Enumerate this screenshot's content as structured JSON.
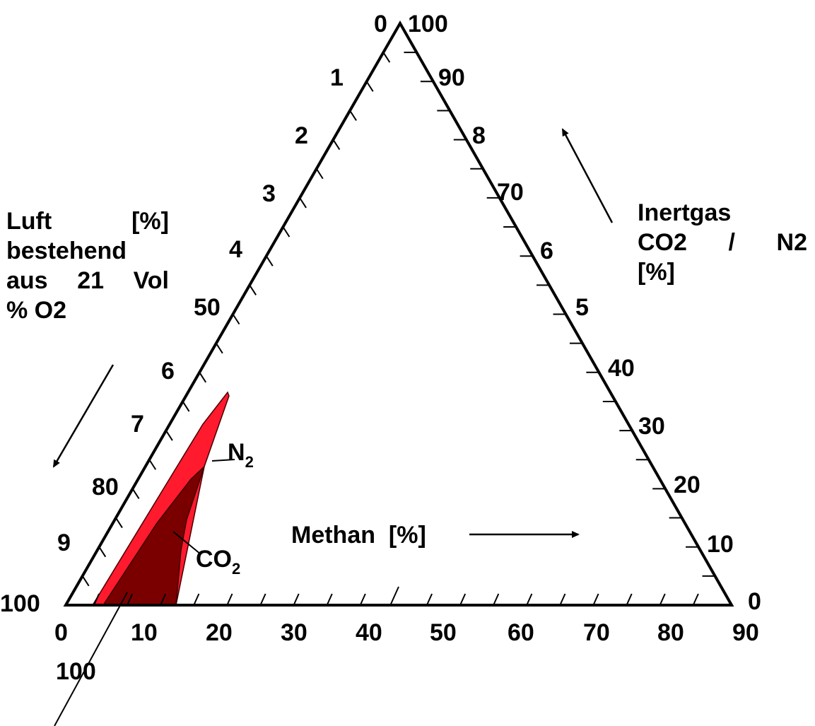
{
  "colors": {
    "n2_region": "#ff1a2e",
    "co2_region": "#7a0000",
    "line": "#000000",
    "background": "#ffffff"
  },
  "left_axis_labels": {
    "top": "0",
    "t1": "1",
    "t2": "2",
    "t3": "3",
    "t4": "4",
    "t5": "50",
    "t6": "6",
    "t7": "7",
    "t8": "80",
    "t9": "9",
    "bottom": "100"
  },
  "right_axis_labels": {
    "top": "100",
    "t9": "90",
    "t8": "8",
    "t7": "70",
    "t6": "6",
    "t5": "5",
    "t4": "40",
    "t3": "30",
    "t2": "20",
    "t1": "10",
    "bottom": "0"
  },
  "bottom_axis_labels": [
    "0",
    "10",
    "20",
    "30",
    "40",
    "50",
    "60",
    "70",
    "80",
    "90"
  ],
  "extra_label_100": "100",
  "axis_titles": {
    "methane": "Methan  [%]",
    "air_line1_a": "Luft",
    "air_line1_b": "[%]",
    "air_line2": "bestehend",
    "air_line3_a": "aus",
    "air_line3_b": "21",
    "air_line3_c": "Vol",
    "air_line4": "% O2",
    "inert_line1": "Inertgas",
    "inert_line2_a": "CO2",
    "inert_line2_b": "/",
    "inert_line2_c": "N2",
    "inert_line3": "[%]"
  },
  "regions": {
    "n2_label_main": "N",
    "n2_label_sub": "2",
    "co2_label_main": "CO",
    "co2_label_sub": "2"
  }
}
